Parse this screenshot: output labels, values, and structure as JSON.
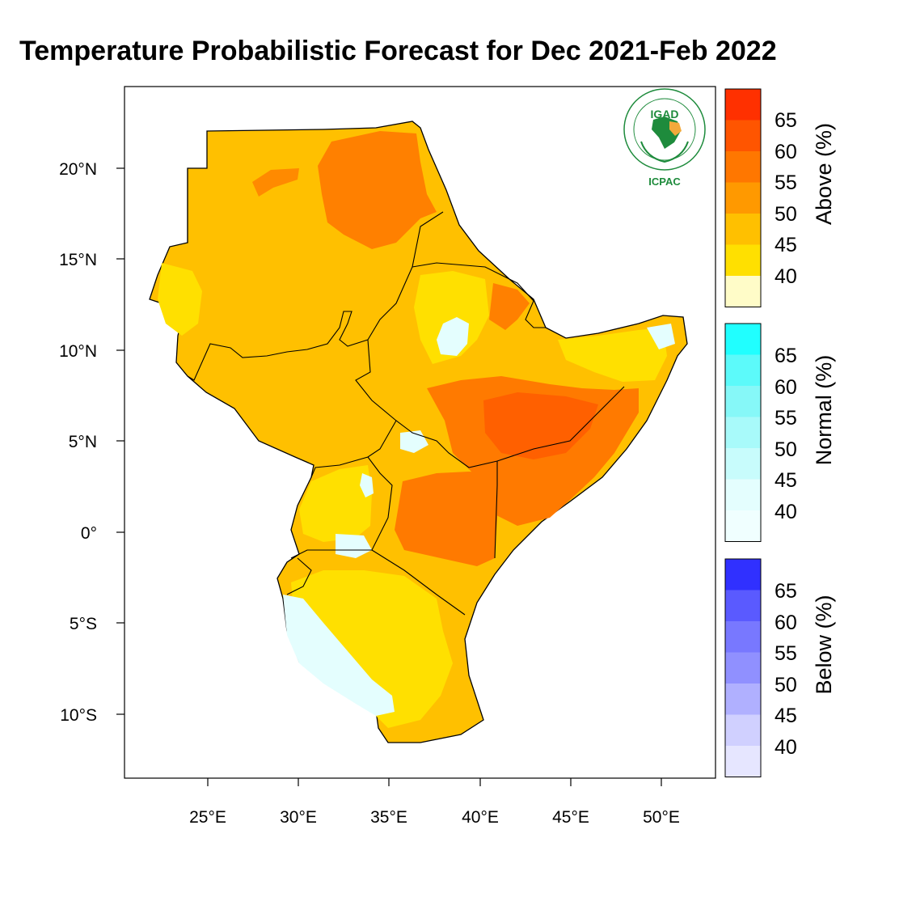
{
  "title": "Temperature Probabilistic Forecast for Dec 2021-Feb 2022",
  "logo": {
    "top_text": "IGAD",
    "bottom_text": "ICPAC",
    "ring_text": "INTERGOVERNMENTAL AUTHORITY ON DEVELOPMENT · AUTORITE INTERGOUVERNEMENTALE POUR LE DEVELOPPEMENT",
    "color": "#1e8b3c"
  },
  "map": {
    "x_ticks": [
      {
        "lon": 25,
        "label": "25°E"
      },
      {
        "lon": 30,
        "label": "30°E"
      },
      {
        "lon": 35,
        "label": "35°E"
      },
      {
        "lon": 40,
        "label": "40°E"
      },
      {
        "lon": 45,
        "label": "45°E"
      },
      {
        "lon": 50,
        "label": "50°E"
      }
    ],
    "y_ticks": [
      {
        "lat": 20,
        "label": "20°N"
      },
      {
        "lat": 15,
        "label": "15°N"
      },
      {
        "lat": 10,
        "label": "10°N"
      },
      {
        "lat": 5,
        "label": "5°N"
      },
      {
        "lat": 0,
        "label": "0°"
      },
      {
        "lat": -5,
        "label": "5°S"
      },
      {
        "lat": -10,
        "label": "10°S"
      }
    ],
    "lon_range": [
      20.5,
      53
    ],
    "lat_range": [
      -13.5,
      24.5
    ]
  },
  "colorbars": [
    {
      "title": "Above (%)",
      "labels": [
        "65",
        "60",
        "55",
        "50",
        "45",
        "40"
      ],
      "colors": [
        "#ff3000",
        "#ff5500",
        "#ff7700",
        "#ff9900",
        "#ffc000",
        "#ffe000",
        "#fffcc8"
      ]
    },
    {
      "title": "Normal (%)",
      "labels": [
        "65",
        "60",
        "55",
        "50",
        "45",
        "40"
      ],
      "colors": [
        "#20ffff",
        "#5cfafa",
        "#86f8f8",
        "#a8fafa",
        "#c8fcfc",
        "#e4fefe",
        "#f0ffff"
      ]
    },
    {
      "title": "Below (%)",
      "labels": [
        "65",
        "60",
        "55",
        "50",
        "45",
        "40"
      ],
      "colors": [
        "#3030ff",
        "#5a5aff",
        "#7878ff",
        "#9090ff",
        "#b0b0ff",
        "#d0d0ff",
        "#e6e6ff"
      ]
    }
  ],
  "palette": {
    "above_45": "#ffc000",
    "above_40": "#ffe000",
    "above_55": "#ff8000",
    "above_60": "#ff6000",
    "normal_40": "#e4fefe"
  }
}
